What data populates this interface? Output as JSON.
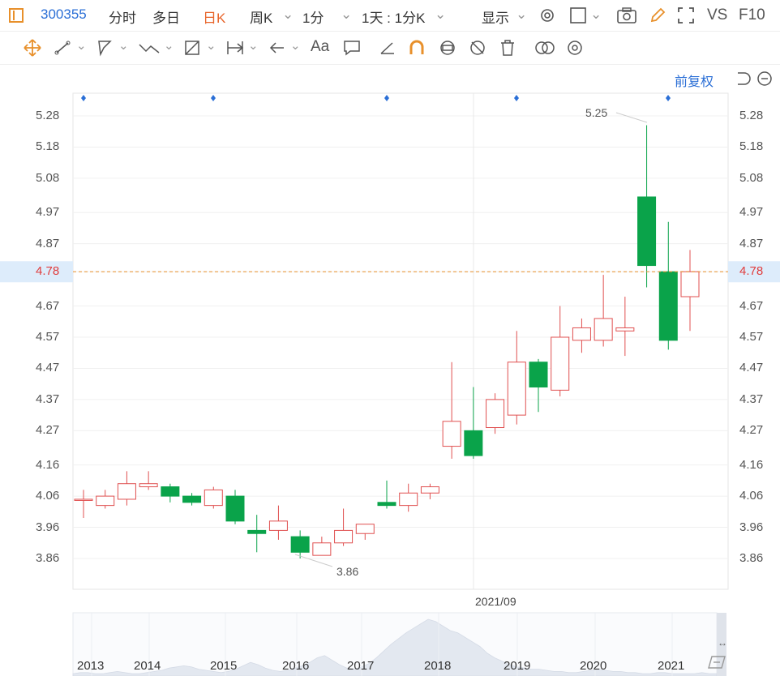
{
  "topbar": {
    "code": "300355",
    "tabs": [
      "分时",
      "多日",
      "日K",
      "周K",
      "1分"
    ],
    "active_tab": "日K",
    "interval": "1天 : 1分K",
    "display": "显示",
    "right_labels": [
      "VS",
      "F10"
    ]
  },
  "toolbar": {
    "text_tool": "Aa",
    "adjust": "前复权"
  },
  "colors": {
    "up": "#e05050",
    "down": "#0aa34a",
    "price_line": "#e8902b",
    "accent": "#2b6fd6"
  },
  "chart_data": {
    "type": "candlestick",
    "y_ticks": [
      5.28,
      5.18,
      5.08,
      4.97,
      4.87,
      4.78,
      4.67,
      4.57,
      4.47,
      4.37,
      4.27,
      4.16,
      4.06,
      3.96,
      3.86
    ],
    "current_price": 4.78,
    "max_label": "5.25",
    "min_label": "3.86",
    "crosshair_date": "2021/09",
    "x_labels": [
      "2013",
      "2014",
      "2015",
      "2016",
      "2017",
      "2018",
      "2019",
      "2020",
      "2021"
    ],
    "candles": [
      {
        "o": 4.05,
        "c": 4.05,
        "h": 4.08,
        "l": 3.99
      },
      {
        "o": 4.03,
        "c": 4.06,
        "h": 4.08,
        "l": 4.02
      },
      {
        "o": 4.05,
        "c": 4.1,
        "h": 4.14,
        "l": 4.03
      },
      {
        "o": 4.09,
        "c": 4.1,
        "h": 4.14,
        "l": 4.08
      },
      {
        "o": 4.09,
        "c": 4.06,
        "h": 4.1,
        "l": 4.04
      },
      {
        "o": 4.06,
        "c": 4.04,
        "h": 4.07,
        "l": 4.03
      },
      {
        "o": 4.03,
        "c": 4.08,
        "h": 4.09,
        "l": 4.02
      },
      {
        "o": 4.06,
        "c": 3.98,
        "h": 4.08,
        "l": 3.97
      },
      {
        "o": 3.95,
        "c": 3.94,
        "h": 4.0,
        "l": 3.88
      },
      {
        "o": 3.95,
        "c": 3.98,
        "h": 4.03,
        "l": 3.92
      },
      {
        "o": 3.93,
        "c": 3.88,
        "h": 3.95,
        "l": 3.86
      },
      {
        "o": 3.87,
        "c": 3.91,
        "h": 3.93,
        "l": 3.87
      },
      {
        "o": 3.91,
        "c": 3.95,
        "h": 4.02,
        "l": 3.9
      },
      {
        "o": 3.94,
        "c": 3.97,
        "h": 3.97,
        "l": 3.92
      },
      {
        "o": 4.04,
        "c": 4.03,
        "h": 4.11,
        "l": 4.02
      },
      {
        "o": 4.03,
        "c": 4.07,
        "h": 4.1,
        "l": 4.01
      },
      {
        "o": 4.07,
        "c": 4.09,
        "h": 4.1,
        "l": 4.05
      },
      {
        "o": 4.22,
        "c": 4.3,
        "h": 4.49,
        "l": 4.18
      },
      {
        "o": 4.27,
        "c": 4.19,
        "h": 4.41,
        "l": 4.18
      },
      {
        "o": 4.28,
        "c": 4.37,
        "h": 4.39,
        "l": 4.26
      },
      {
        "o": 4.32,
        "c": 4.49,
        "h": 4.59,
        "l": 4.29
      },
      {
        "o": 4.49,
        "c": 4.41,
        "h": 4.5,
        "l": 4.33
      },
      {
        "o": 4.4,
        "c": 4.57,
        "h": 4.67,
        "l": 4.38
      },
      {
        "o": 4.56,
        "c": 4.6,
        "h": 4.63,
        "l": 4.52
      },
      {
        "o": 4.56,
        "c": 4.63,
        "h": 4.77,
        "l": 4.54
      },
      {
        "o": 4.59,
        "c": 4.6,
        "h": 4.7,
        "l": 4.51
      },
      {
        "o": 5.02,
        "c": 4.8,
        "h": 5.25,
        "l": 4.73
      },
      {
        "o": 4.78,
        "c": 4.56,
        "h": 4.94,
        "l": 4.53
      },
      {
        "o": 4.7,
        "c": 4.78,
        "h": 4.85,
        "l": 4.59
      }
    ],
    "volume_profile": [
      2,
      3,
      3,
      2,
      2,
      3,
      4,
      3,
      2,
      2,
      3,
      4,
      5,
      7,
      8,
      9,
      8,
      6,
      5,
      4,
      3,
      4,
      6,
      9,
      12,
      10,
      7,
      5,
      4,
      5,
      7,
      9,
      12,
      16,
      18,
      14,
      10,
      7,
      6,
      8,
      11,
      16,
      22,
      28,
      33,
      38,
      42,
      46,
      50,
      48,
      44,
      40,
      38,
      34,
      30,
      26,
      20,
      16,
      13,
      10,
      8,
      7,
      6,
      6,
      5,
      4,
      4,
      3,
      3,
      4,
      5,
      6,
      5,
      4,
      4,
      3,
      3,
      2,
      2,
      3,
      3,
      2,
      2,
      2,
      2,
      3,
      2,
      2
    ]
  }
}
